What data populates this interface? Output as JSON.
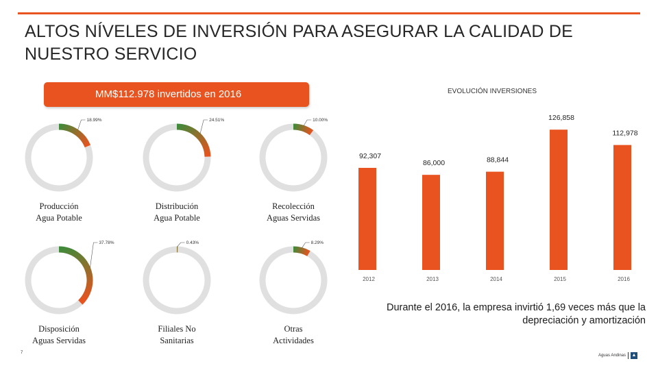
{
  "slide": {
    "title": "ALTOS NÍVELES DE INVERSIÓN PARA ASEGURAR LA CALIDAD DE NUESTRO SERVICIO",
    "banner": "MM$112.978 invertidos en 2016",
    "footer_text": "Durante el 2016, la empresa invirtió 1,69 veces más que la depreciación y amortización",
    "page_number": "7",
    "brand": "Aguas Andinas"
  },
  "colors": {
    "accent": "#e8531f",
    "donut_track": "#e0e0e0",
    "donut_green": "#3f8a3a",
    "donut_orange": "#e8531f"
  },
  "donuts": [
    {
      "label_line1": "Producción",
      "label_line2": "Agua Potable",
      "percent_text": "18.99%",
      "value": 18.99
    },
    {
      "label_line1": "Distribución",
      "label_line2": "Agua Potable",
      "percent_text": "24.51%",
      "value": 24.51
    },
    {
      "label_line1": "Recolección",
      "label_line2": "Aguas Servidas",
      "percent_text": "10.00%",
      "value": 10.0
    },
    {
      "label_line1": "Disposición",
      "label_line2": "Aguas Servidas",
      "percent_text": "37.78%",
      "value": 37.78
    },
    {
      "label_line1": "Filiales No",
      "label_line2": "Sanitarias",
      "percent_text": "0.43%",
      "value": 0.43
    },
    {
      "label_line1": "Otras",
      "label_line2": "Actividades",
      "percent_text": "8.29%",
      "value": 8.29
    }
  ],
  "chart_data": {
    "type": "bar",
    "title": "EVOLUCIÓN INVERSIONES",
    "categories": [
      "2012",
      "2013",
      "2014",
      "2015",
      "2016"
    ],
    "values": [
      92307,
      86000,
      88844,
      126858,
      112978
    ],
    "value_labels": [
      "92,307",
      "86,000",
      "88,844",
      "126,858",
      "112,978"
    ],
    "xlabel": "",
    "ylabel": "",
    "ylim": [
      0,
      140000
    ],
    "color": "#e8531f",
    "grid": false
  }
}
